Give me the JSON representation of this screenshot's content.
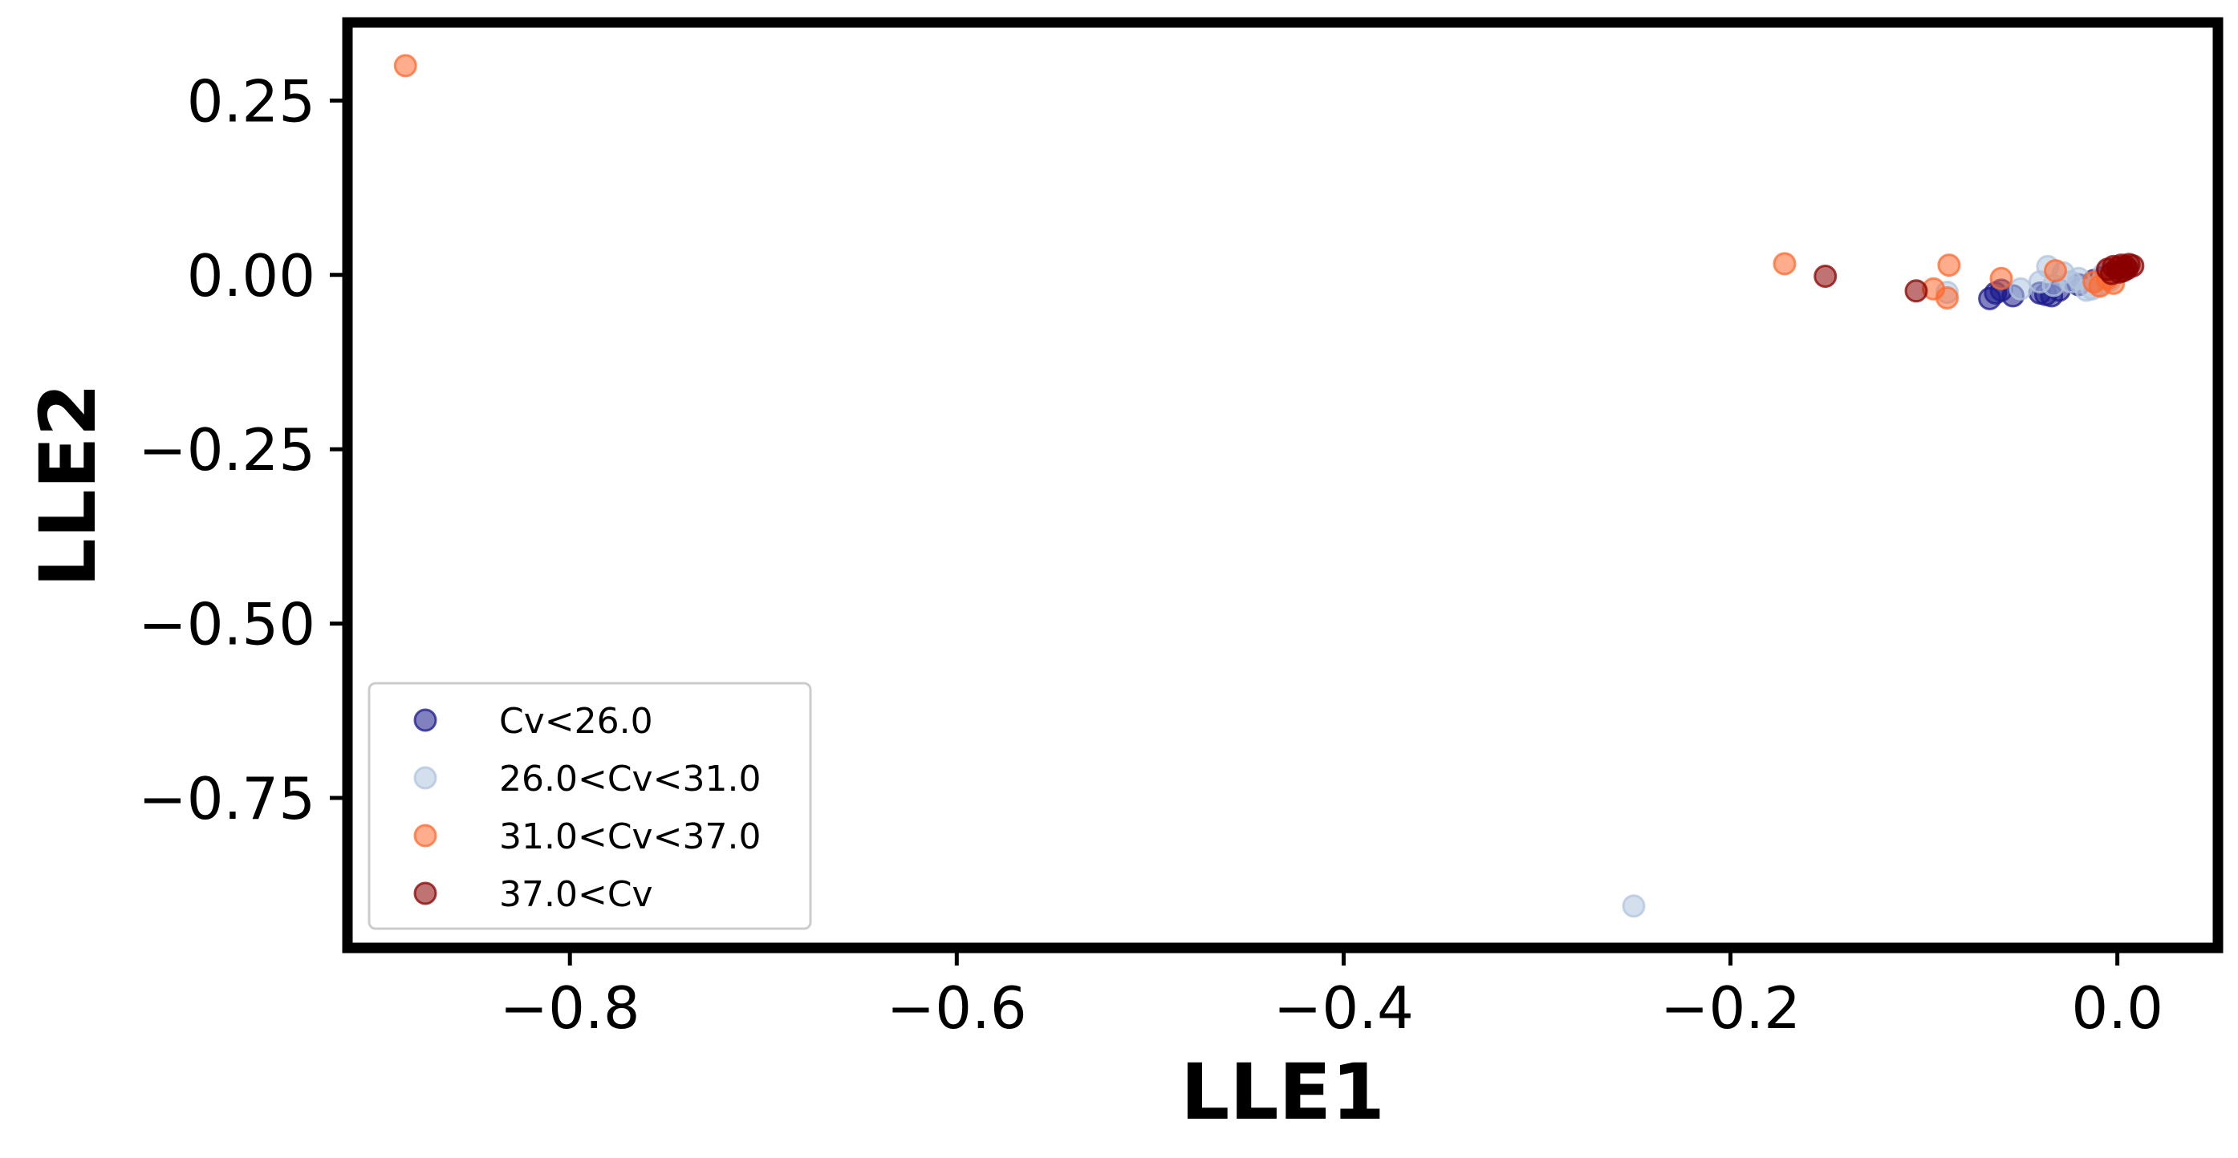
{
  "chart_data": {
    "type": "scatter",
    "title": "",
    "xlabel": "LLE1",
    "ylabel": "LLE2",
    "xlim": [
      -0.915,
      0.052
    ],
    "ylim": [
      -0.965,
      0.362
    ],
    "x_ticks": [
      -0.8,
      -0.6,
      -0.4,
      -0.2,
      0.0
    ],
    "x_tick_labels": [
      "−0.8",
      "−0.6",
      "−0.4",
      "−0.2",
      "0.0"
    ],
    "y_ticks": [
      0.25,
      0.0,
      -0.25,
      -0.5,
      -0.75
    ],
    "y_tick_labels": [
      "0.25",
      "0.00",
      "−0.25",
      "−0.50",
      "−0.75"
    ],
    "grid": false,
    "legend_position": "lower-left",
    "series": [
      {
        "name": "Cv<26.0",
        "color": "#1a1a8c",
        "x": [
          -0.066,
          -0.063,
          -0.06,
          -0.054,
          -0.04,
          -0.037,
          -0.034,
          -0.03,
          -0.02,
          -0.012,
          -0.008,
          -0.003
        ],
        "y": [
          -0.034,
          -0.026,
          -0.022,
          -0.03,
          -0.026,
          -0.028,
          -0.03,
          -0.022,
          -0.014,
          -0.008,
          -0.004,
          0.001
        ]
      },
      {
        "name": "26.0<Cv<31.0",
        "color": "#b0c4de",
        "x": [
          -0.25,
          -0.088,
          -0.05,
          -0.04,
          -0.036,
          -0.033,
          -0.028,
          -0.024,
          -0.02,
          -0.016,
          -0.013,
          -0.01,
          -0.007,
          -0.004
        ],
        "y": [
          -0.905,
          -0.025,
          -0.02,
          -0.01,
          0.012,
          -0.015,
          0.003,
          -0.01,
          -0.005,
          -0.022,
          -0.02,
          -0.015,
          0.002,
          -0.008
        ]
      },
      {
        "name": "31.0<Cv<37.0",
        "color": "#ff6a2e",
        "x": [
          -0.885,
          -0.172,
          -0.087,
          -0.095,
          -0.088,
          -0.06,
          -0.032,
          -0.012,
          -0.009,
          -0.005,
          -0.002
        ],
        "y": [
          0.3,
          0.016,
          0.014,
          -0.02,
          -0.033,
          -0.005,
          0.006,
          -0.01,
          -0.016,
          -0.005,
          -0.012
        ]
      },
      {
        "name": "37.0<Cv",
        "color": "#8b0000",
        "x": [
          -0.151,
          -0.104,
          -0.005,
          -0.002,
          0.0,
          0.002,
          0.004,
          0.006,
          0.008,
          0.001,
          -0.003,
          0.003,
          0.005
        ],
        "y": [
          -0.002,
          -0.023,
          0.008,
          0.012,
          0.01,
          0.014,
          0.012,
          0.015,
          0.013,
          0.004,
          0.002,
          0.006,
          0.009
        ]
      }
    ]
  }
}
